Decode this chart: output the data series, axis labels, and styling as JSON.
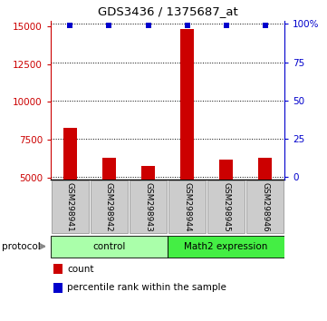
{
  "title": "GDS3436 / 1375687_at",
  "samples": [
    "GSM298941",
    "GSM298942",
    "GSM298943",
    "GSM298944",
    "GSM298945",
    "GSM298946"
  ],
  "counts": [
    8300,
    6300,
    5750,
    14800,
    6200,
    6300
  ],
  "percentile_ranks": [
    99,
    99,
    99,
    99,
    99,
    99
  ],
  "ylim_left": [
    4850,
    15350
  ],
  "ylim_right": [
    -2,
    102
  ],
  "yticks_left": [
    5000,
    7500,
    10000,
    12500,
    15000
  ],
  "yticks_right": [
    0,
    25,
    50,
    75,
    100
  ],
  "ytick_labels_left": [
    "5000",
    "7500",
    "10000",
    "12500",
    "15000"
  ],
  "ytick_labels_right": [
    "0",
    "25",
    "50",
    "75",
    "100%"
  ],
  "bar_color": "#cc0000",
  "dot_color": "#0000cc",
  "bar_width": 0.35,
  "groups": [
    {
      "label": "control",
      "samples_idx": [
        0,
        1,
        2
      ],
      "color": "#aaffaa"
    },
    {
      "label": "Math2 expression",
      "samples_idx": [
        3,
        4,
        5
      ],
      "color": "#44ee44"
    }
  ],
  "protocol_label": "protocol",
  "legend_count_label": "count",
  "legend_percentile_label": "percentile rank within the sample",
  "left_axis_color": "#cc0000",
  "right_axis_color": "#0000cc",
  "base_value": 4850,
  "label_box_color": "#cccccc",
  "label_box_edge": "#888888"
}
